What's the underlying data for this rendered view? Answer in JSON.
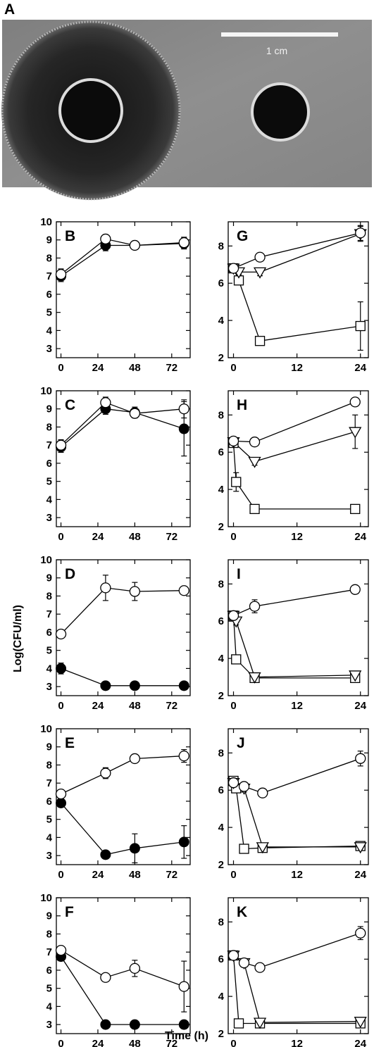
{
  "figure": {
    "photo": {
      "panel_label": "A",
      "scale_bar_label": "1 cm",
      "colors": {
        "agar": "#8e8e8e",
        "halo": "#2c2c2c",
        "well": "#0b0b0b",
        "ring": "#d8d8d8"
      }
    },
    "ylabel": "Log(CFU/ml)",
    "xlabel": "Time (h)"
  },
  "chart_data": [
    {
      "id": "B",
      "panel_label": "B",
      "type": "line",
      "xticks": [
        0,
        24,
        48,
        72
      ],
      "yticks": [
        3,
        4,
        5,
        6,
        7,
        8,
        9,
        10
      ],
      "xlim": [
        -3,
        84
      ],
      "ylim": [
        2.5,
        10
      ],
      "series": [
        {
          "marker": "filled-circle",
          "points": [
            [
              0,
              7.0
            ],
            [
              29,
              8.7
            ],
            [
              48,
              8.7
            ],
            [
              80,
              8.8
            ]
          ],
          "yerr": [
            0.3,
            0.3,
            0.15,
            0.3
          ]
        },
        {
          "marker": "open-circle",
          "points": [
            [
              0,
              7.1
            ],
            [
              29,
              9.05
            ],
            [
              48,
              8.7
            ],
            [
              80,
              8.85
            ]
          ],
          "yerr": [
            0.3,
            0.2,
            0.15,
            0.3
          ]
        }
      ]
    },
    {
      "id": "G",
      "panel_label": "G",
      "type": "line",
      "xticks": [
        0,
        12,
        24
      ],
      "yticks": [
        2,
        4,
        6,
        8
      ],
      "xlim": [
        -1,
        25.5
      ],
      "ylim": [
        2,
        9.3
      ],
      "series": [
        {
          "marker": "open-circle",
          "points": [
            [
              0,
              6.8
            ],
            [
              5,
              7.4
            ],
            [
              24,
              8.7
            ]
          ],
          "yerr": [
            0,
            0.15,
            0.4
          ]
        },
        {
          "marker": "open-triangle",
          "points": [
            [
              0,
              6.8
            ],
            [
              1,
              6.6
            ],
            [
              5,
              6.6
            ],
            [
              24,
              8.65
            ]
          ],
          "yerr": [
            0,
            0.15,
            0.2,
            0.4
          ]
        },
        {
          "marker": "open-square",
          "points": [
            [
              0,
              6.8
            ],
            [
              1,
              6.15
            ],
            [
              5,
              2.9
            ],
            [
              24,
              3.7
            ]
          ],
          "yerr": [
            0,
            0.2,
            0.1,
            1.3
          ]
        }
      ]
    },
    {
      "id": "C",
      "panel_label": "C",
      "type": "line",
      "xticks": [
        0,
        24,
        48,
        72
      ],
      "yticks": [
        3,
        4,
        5,
        6,
        7,
        8,
        9,
        10
      ],
      "xlim": [
        -3,
        84
      ],
      "ylim": [
        2.5,
        10
      ],
      "series": [
        {
          "marker": "filled-circle",
          "points": [
            [
              0,
              6.9
            ],
            [
              29,
              9.0
            ],
            [
              48,
              8.8
            ],
            [
              80,
              7.9
            ]
          ],
          "yerr": [
            0.3,
            0.3,
            0.3,
            1.5
          ]
        },
        {
          "marker": "open-circle",
          "points": [
            [
              0,
              7.0
            ],
            [
              29,
              9.35
            ],
            [
              48,
              8.75
            ],
            [
              80,
              9.0
            ]
          ],
          "yerr": [
            0.3,
            0.3,
            0.2,
            0.5
          ]
        }
      ]
    },
    {
      "id": "H",
      "panel_label": "H",
      "type": "line",
      "xticks": [
        0,
        12,
        24
      ],
      "yticks": [
        2,
        4,
        6,
        8
      ],
      "xlim": [
        -1,
        25.5
      ],
      "ylim": [
        2,
        9.3
      ],
      "series": [
        {
          "marker": "open-circle",
          "points": [
            [
              0,
              6.6
            ],
            [
              4,
              6.55
            ],
            [
              23,
              8.7
            ]
          ],
          "yerr": [
            0,
            0.1,
            0.15
          ]
        },
        {
          "marker": "open-triangle",
          "points": [
            [
              0,
              6.55
            ],
            [
              4,
              5.5
            ],
            [
              23,
              7.1
            ]
          ],
          "yerr": [
            0,
            0.2,
            0.9
          ]
        },
        {
          "marker": "open-square",
          "points": [
            [
              0,
              6.5
            ],
            [
              0.5,
              4.4
            ],
            [
              4,
              2.95
            ],
            [
              23,
              2.95
            ]
          ],
          "yerr": [
            0,
            0.5,
            0.1,
            0.1
          ]
        }
      ]
    },
    {
      "id": "D",
      "panel_label": "D",
      "type": "line",
      "xticks": [
        0,
        24,
        48,
        72
      ],
      "yticks": [
        3,
        4,
        5,
        6,
        7,
        8,
        9,
        10
      ],
      "xlim": [
        -3,
        84
      ],
      "ylim": [
        2.5,
        10
      ],
      "series": [
        {
          "marker": "open-circle",
          "points": [
            [
              0,
              5.9
            ],
            [
              29,
              8.45
            ],
            [
              48,
              8.25
            ],
            [
              80,
              8.3
            ]
          ],
          "yerr": [
            0.2,
            0.7,
            0.5,
            0.2
          ]
        },
        {
          "marker": "filled-circle",
          "points": [
            [
              0,
              4.0
            ],
            [
              29,
              3.05
            ],
            [
              48,
              3.05
            ],
            [
              80,
              3.05
            ]
          ],
          "yerr": [
            0.3,
            0,
            0,
            0
          ]
        }
      ]
    },
    {
      "id": "I",
      "panel_label": "I",
      "type": "line",
      "xticks": [
        0,
        12,
        24
      ],
      "yticks": [
        2,
        4,
        6,
        8
      ],
      "xlim": [
        -1,
        25.5
      ],
      "ylim": [
        2,
        9.3
      ],
      "series": [
        {
          "marker": "open-circle",
          "points": [
            [
              0,
              6.3
            ],
            [
              4,
              6.8
            ],
            [
              23,
              7.7
            ]
          ],
          "yerr": [
            0,
            0.35,
            0.15
          ]
        },
        {
          "marker": "open-triangle",
          "points": [
            [
              0,
              6.3
            ],
            [
              0.5,
              6.0
            ],
            [
              4,
              3.0
            ],
            [
              23,
              3.1
            ]
          ],
          "yerr": [
            0,
            0.2,
            0.1,
            0.1
          ]
        },
        {
          "marker": "open-square",
          "points": [
            [
              0,
              6.3
            ],
            [
              0.5,
              3.95
            ],
            [
              4,
              2.95
            ],
            [
              23,
              2.95
            ]
          ],
          "yerr": [
            0,
            0.2,
            0.1,
            0.1
          ]
        }
      ]
    },
    {
      "id": "E",
      "panel_label": "E",
      "type": "line",
      "xticks": [
        0,
        24,
        48,
        72
      ],
      "yticks": [
        3,
        4,
        5,
        6,
        7,
        8,
        9,
        10
      ],
      "xlim": [
        -3,
        84
      ],
      "ylim": [
        2.5,
        10
      ],
      "series": [
        {
          "marker": "open-circle",
          "points": [
            [
              0,
              6.4
            ],
            [
              29,
              7.55
            ],
            [
              48,
              8.35
            ],
            [
              80,
              8.5
            ]
          ],
          "yerr": [
            0.2,
            0.3,
            0.2,
            0.35
          ]
        },
        {
          "marker": "filled-circle",
          "points": [
            [
              0,
              5.9
            ],
            [
              29,
              3.05
            ],
            [
              48,
              3.4
            ],
            [
              80,
              3.75
            ]
          ],
          "yerr": [
            0.2,
            0,
            0.8,
            0.9
          ]
        }
      ]
    },
    {
      "id": "J",
      "panel_label": "J",
      "type": "line",
      "xticks": [
        0,
        12,
        24
      ],
      "yticks": [
        2,
        4,
        6,
        8
      ],
      "xlim": [
        -1,
        25.5
      ],
      "ylim": [
        2,
        9.3
      ],
      "series": [
        {
          "marker": "open-circle",
          "points": [
            [
              0,
              6.4
            ],
            [
              2,
              6.2
            ],
            [
              5.5,
              5.85
            ],
            [
              24,
              7.7
            ]
          ],
          "yerr": [
            0,
            0.2,
            0.15,
            0.4
          ]
        },
        {
          "marker": "open-triangle",
          "points": [
            [
              0,
              6.4
            ],
            [
              2,
              6.1
            ],
            [
              5.5,
              2.95
            ],
            [
              24,
              2.95
            ]
          ],
          "yerr": [
            0,
            0.2,
            0.1,
            0.15
          ]
        },
        {
          "marker": "open-square",
          "points": [
            [
              0,
              6.5
            ],
            [
              0.5,
              6.1
            ],
            [
              2,
              2.85
            ],
            [
              5.5,
              2.9
            ],
            [
              24,
              3.0
            ]
          ],
          "yerr": [
            0,
            0.2,
            0.1,
            0.1,
            0.1
          ]
        }
      ]
    },
    {
      "id": "F",
      "panel_label": "F",
      "type": "line",
      "xticks": [
        0,
        24,
        48,
        72
      ],
      "yticks": [
        3,
        4,
        5,
        6,
        7,
        8,
        9,
        10
      ],
      "xlim": [
        -3,
        84
      ],
      "ylim": [
        2.5,
        10
      ],
      "series": [
        {
          "marker": "open-circle",
          "points": [
            [
              0,
              7.1
            ],
            [
              29,
              5.6
            ],
            [
              48,
              6.1
            ],
            [
              80,
              5.1
            ]
          ],
          "yerr": [
            0.2,
            0.2,
            0.45,
            1.4
          ]
        },
        {
          "marker": "filled-circle",
          "points": [
            [
              0,
              6.75
            ],
            [
              29,
              3.0
            ],
            [
              48,
              3.0
            ],
            [
              80,
              3.0
            ]
          ],
          "yerr": [
            0.2,
            0,
            0,
            0
          ]
        }
      ]
    },
    {
      "id": "K",
      "panel_label": "K",
      "type": "line",
      "xticks": [
        0,
        12,
        24
      ],
      "yticks": [
        2,
        4,
        6,
        8
      ],
      "xlim": [
        -1,
        25.5
      ],
      "ylim": [
        2,
        9.3
      ],
      "series": [
        {
          "marker": "open-circle",
          "points": [
            [
              0,
              6.2
            ],
            [
              2,
              5.8
            ],
            [
              5,
              5.55
            ],
            [
              24,
              7.4
            ]
          ],
          "yerr": [
            0,
            0.15,
            0.15,
            0.35
          ]
        },
        {
          "marker": "open-triangle",
          "points": [
            [
              0,
              6.2
            ],
            [
              2,
              5.8
            ],
            [
              5,
              2.6
            ],
            [
              24,
              2.65
            ]
          ],
          "yerr": [
            0,
            0.15,
            0.1,
            0.15
          ]
        },
        {
          "marker": "open-square",
          "points": [
            [
              0,
              6.2
            ],
            [
              1,
              2.55
            ],
            [
              5,
              2.55
            ],
            [
              24,
              2.55
            ]
          ],
          "yerr": [
            0,
            0.1,
            0.1,
            0.1
          ]
        }
      ]
    }
  ]
}
